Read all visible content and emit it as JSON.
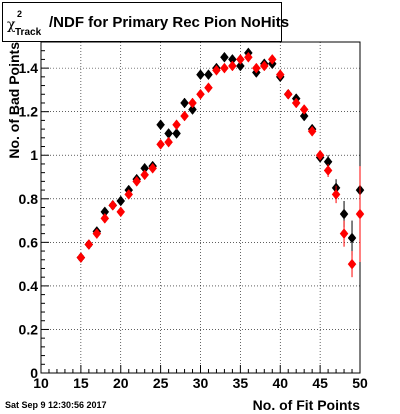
{
  "title": {
    "chi": "χ",
    "sup": "2",
    "sub": "Track",
    "main": "/NDF for Primary Rec Pion NoHits"
  },
  "timestamp": "Sat Sep  9 12:30:56 2017",
  "chart_data": {
    "type": "scatter",
    "xlabel": "No. of Fit Points",
    "ylabel": "No. of Bad Points",
    "xlim": [
      10,
      50
    ],
    "ylim": [
      0,
      1.52
    ],
    "xticks": [
      10,
      15,
      20,
      25,
      30,
      35,
      40,
      45,
      50
    ],
    "yticks": [
      0,
      0.2,
      0.4,
      0.6,
      0.8,
      1,
      1.2,
      1.4
    ],
    "ytick_labels": [
      "0",
      "0.2",
      "0.4",
      "0.6",
      "0.8",
      "1",
      "1.2",
      "1.4"
    ],
    "grid": true,
    "x": [
      15,
      16,
      17,
      18,
      19,
      20,
      21,
      22,
      23,
      24,
      25,
      26,
      27,
      28,
      29,
      30,
      31,
      32,
      33,
      34,
      35,
      36,
      37,
      38,
      39,
      40,
      41,
      42,
      43,
      44,
      45,
      46,
      47,
      48,
      49,
      50
    ],
    "series": [
      {
        "color": "#000000",
        "values": [
          0.53,
          0.59,
          0.65,
          0.74,
          0.77,
          0.79,
          0.84,
          0.89,
          0.94,
          0.95,
          1.14,
          1.1,
          1.1,
          1.24,
          1.21,
          1.37,
          1.37,
          1.4,
          1.45,
          1.44,
          1.41,
          1.47,
          1.38,
          1.42,
          1.42,
          1.36,
          1.28,
          1.26,
          1.18,
          1.12,
          0.99,
          0.97,
          0.85,
          0.73,
          0.62,
          0.84
        ],
        "errors": [
          0.01,
          0.01,
          0.01,
          0.01,
          0.01,
          0.01,
          0.01,
          0.01,
          0.01,
          0.01,
          0.01,
          0.01,
          0.01,
          0.01,
          0.01,
          0.01,
          0.01,
          0.01,
          0.01,
          0.01,
          0.01,
          0.01,
          0.01,
          0.01,
          0.01,
          0.01,
          0.01,
          0.01,
          0.01,
          0.01,
          0.02,
          0.03,
          0.04,
          0.06,
          0.08,
          0.28
        ]
      },
      {
        "color": "#ff0000",
        "values": [
          0.53,
          0.59,
          0.64,
          0.71,
          0.77,
          0.74,
          0.82,
          0.88,
          0.91,
          0.94,
          1.05,
          1.06,
          1.14,
          1.18,
          1.24,
          1.28,
          1.31,
          1.39,
          1.4,
          1.41,
          1.44,
          1.45,
          1.4,
          1.41,
          1.44,
          1.37,
          1.28,
          1.24,
          1.21,
          1.11,
          1.0,
          0.93,
          0.82,
          0.64,
          0.5,
          0.73
        ],
        "errors": [
          0.01,
          0.01,
          0.01,
          0.01,
          0.01,
          0.01,
          0.01,
          0.01,
          0.01,
          0.01,
          0.01,
          0.01,
          0.01,
          0.01,
          0.01,
          0.01,
          0.01,
          0.01,
          0.01,
          0.01,
          0.01,
          0.01,
          0.01,
          0.01,
          0.01,
          0.01,
          0.01,
          0.01,
          0.01,
          0.02,
          0.02,
          0.03,
          0.04,
          0.06,
          0.06,
          0.22
        ]
      }
    ]
  }
}
